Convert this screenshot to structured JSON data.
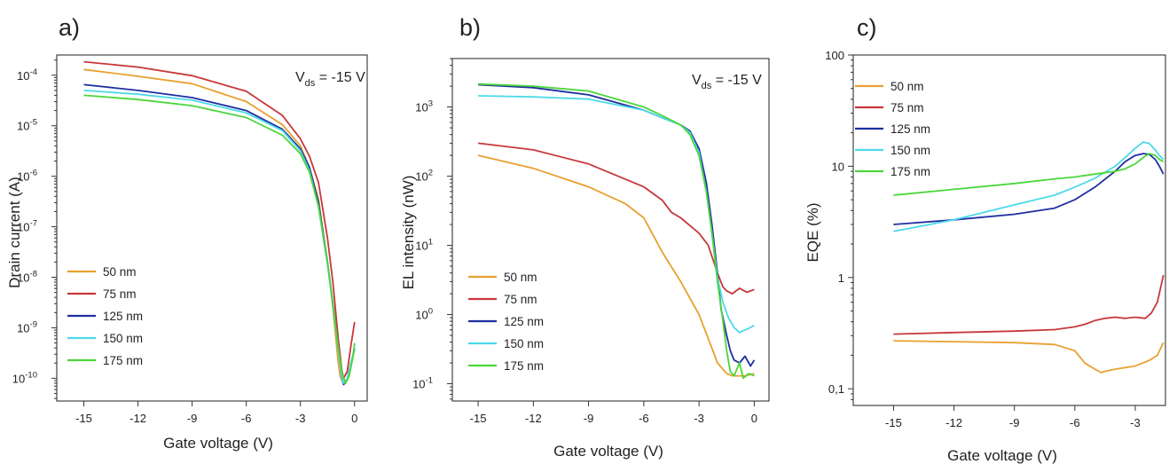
{
  "figure": {
    "annotation_prefix": "V",
    "annotation_subscript": "ds",
    "annotation_suffix": " = -15 V"
  },
  "chart_data": [
    {
      "panel": "a)",
      "type": "line",
      "xlabel": "Gate voltage (V)",
      "ylabel": "Drain current (A)",
      "xlim": [
        -16.5,
        0.7
      ],
      "xticks": [
        -15,
        -12,
        -9,
        -6,
        -3,
        0
      ],
      "yscale": "log",
      "ylim_exp": [
        -10.45,
        -3.6
      ],
      "yticks_exp": [
        -10,
        -9,
        -8,
        -7,
        -6,
        -5,
        -4
      ],
      "has_annotation": true,
      "legend_position": "bottom-left",
      "series": [
        {
          "name": "50 nm",
          "color": "#E8A030",
          "x": [
            -15,
            -12,
            -9,
            -6,
            -4,
            -3,
            -2.5,
            -2,
            -1.5,
            -1.2,
            -0.9,
            -0.8,
            -0.7,
            -0.55,
            -0.45,
            -0.4
          ],
          "y": [
            0.00013,
            9.5e-05,
            6.8e-05,
            3e-05,
            1.05e-05,
            4e-06,
            1.5e-06,
            3.5e-07,
            2e-08,
            2.5e-09,
            2e-10,
            1.1e-10,
            9e-11,
            1.1e-10,
            1.25e-10,
            1.35e-10
          ]
        },
        {
          "name": "75 nm",
          "color": "#C8373A",
          "x": [
            -15,
            -12,
            -9,
            -6,
            -4,
            -3,
            -2.5,
            -2,
            -1.5,
            -1.2,
            -0.9,
            -0.7,
            -0.6,
            -0.4,
            -0.2,
            0
          ],
          "y": [
            0.000185,
            0.000145,
            9.8e-05,
            4.8e-05,
            1.6e-05,
            5.5e-06,
            2.5e-06,
            7.5e-07,
            6e-08,
            8e-09,
            6e-10,
            1.4e-10,
            1e-10,
            1.4e-10,
            4.5e-10,
            1.3e-09
          ]
        },
        {
          "name": "125 nm",
          "color": "#1E2FA0",
          "x": [
            -15,
            -12,
            -9,
            -6,
            -4,
            -3,
            -2.5,
            -2,
            -1.5,
            -1.2,
            -0.9,
            -0.7,
            -0.6,
            -0.4,
            -0.2,
            0
          ],
          "y": [
            6.5e-05,
            5e-05,
            3.6e-05,
            2e-05,
            8.5e-06,
            3.5e-06,
            1.5e-06,
            3e-07,
            2e-08,
            3e-09,
            4e-10,
            1e-10,
            7.5e-11,
            1e-10,
            2e-10,
            3.8e-10
          ]
        },
        {
          "name": "150 nm",
          "color": "#4DD9E8",
          "x": [
            -15,
            -12,
            -9,
            -6,
            -4,
            -3,
            -2.5,
            -2,
            -1.5,
            -1.2,
            -0.9,
            -0.7,
            -0.6,
            -0.4,
            -0.2,
            0
          ],
          "y": [
            5e-05,
            4.2e-05,
            3.2e-05,
            1.8e-05,
            8e-06,
            3.2e-06,
            1.3e-06,
            2.5e-07,
            1.8e-08,
            2.8e-09,
            3.5e-10,
            1e-10,
            8e-11,
            1e-10,
            2e-10,
            4e-10
          ]
        },
        {
          "name": "175 nm",
          "color": "#4BD63A",
          "x": [
            -15,
            -12,
            -9,
            -6,
            -4,
            -3,
            -2.5,
            -2,
            -1.5,
            -1.2,
            -0.9,
            -0.7,
            -0.5,
            -0.3,
            -0.1,
            0
          ],
          "y": [
            4e-05,
            3.3e-05,
            2.5e-05,
            1.45e-05,
            6.5e-06,
            2.8e-06,
            1.2e-06,
            2.5e-07,
            2e-08,
            3e-09,
            4e-10,
            1.3e-10,
            8e-11,
            1.1e-10,
            2.5e-10,
            5e-10
          ]
        }
      ]
    },
    {
      "panel": "b)",
      "type": "line",
      "xlabel": "Gate voltage (V)",
      "ylabel": "EL intensity (nW)",
      "xlim": [
        -16.4,
        0.8
      ],
      "xticks": [
        -15,
        -12,
        -9,
        -6,
        -3,
        0
      ],
      "yscale": "log",
      "ylim_exp": [
        -1.25,
        3.7
      ],
      "yticks_exp": [
        -1,
        0,
        1,
        2,
        3
      ],
      "has_annotation": true,
      "legend_position": "bottom-left",
      "series": [
        {
          "name": "50 nm",
          "color": "#E8A030",
          "x": [
            -15,
            -12,
            -9,
            -7,
            -6,
            -5,
            -4,
            -3,
            -2.5,
            -2,
            -1.5,
            -1.2,
            -1.0,
            -0.5,
            0
          ],
          "y": [
            200,
            130,
            70,
            40,
            25,
            8,
            3,
            1.0,
            0.45,
            0.2,
            0.14,
            0.13,
            0.13,
            0.13,
            0.14
          ]
        },
        {
          "name": "75 nm",
          "color": "#C8373A",
          "x": [
            -15,
            -12,
            -9,
            -6,
            -5,
            -4.5,
            -4,
            -3,
            -2.5,
            -2,
            -1.7,
            -1.5,
            -1.2,
            -0.8,
            -0.4,
            0
          ],
          "y": [
            300,
            240,
            150,
            70,
            45,
            30,
            25,
            15,
            10,
            4,
            2.5,
            2.2,
            2.0,
            2.4,
            2.1,
            2.3
          ]
        },
        {
          "name": "125 nm",
          "color": "#1E2FA0",
          "x": [
            -15,
            -12,
            -9,
            -6,
            -5,
            -4,
            -3.5,
            -3,
            -2.6,
            -2.3,
            -2.0,
            -1.8,
            -1.5,
            -1.3,
            -1.1,
            -0.8,
            -0.5,
            -0.2,
            0
          ],
          "y": [
            2100,
            1900,
            1500,
            900,
            700,
            550,
            450,
            250,
            80,
            20,
            4,
            1.2,
            0.5,
            0.3,
            0.22,
            0.2,
            0.25,
            0.18,
            0.22
          ]
        },
        {
          "name": "150 nm",
          "color": "#4DD9E8",
          "x": [
            -15,
            -12,
            -9,
            -6,
            -5,
            -4,
            -3.5,
            -3,
            -2.6,
            -2.3,
            -2.0,
            -1.7,
            -1.4,
            -1.1,
            -0.8,
            -0.5,
            -0.2,
            0
          ],
          "y": [
            1450,
            1400,
            1300,
            900,
            700,
            550,
            430,
            220,
            60,
            15,
            3.5,
            1.5,
            0.9,
            0.65,
            0.55,
            0.6,
            0.65,
            0.7
          ]
        },
        {
          "name": "175 nm",
          "color": "#4BD63A",
          "x": [
            -15,
            -12,
            -9,
            -6,
            -5,
            -4,
            -3.5,
            -3,
            -2.6,
            -2.3,
            -2.0,
            -1.7,
            -1.5,
            -1.3,
            -1.1,
            -0.8,
            -0.6,
            -0.3,
            0
          ],
          "y": [
            2150,
            2000,
            1700,
            1000,
            750,
            550,
            400,
            200,
            60,
            15,
            3,
            0.8,
            0.3,
            0.15,
            0.13,
            0.2,
            0.12,
            0.14,
            0.13
          ]
        }
      ]
    },
    {
      "panel": "c)",
      "type": "line",
      "xlabel": "Gate voltage (V)",
      "ylabel": "EQE (%)",
      "xlim": [
        -17,
        -1.5
      ],
      "xticks": [
        -15,
        -12,
        -9,
        -6,
        -3
      ],
      "xtick_labels": [
        "-15",
        "-12",
        "-9",
        "-6",
        "-3"
      ],
      "yscale": "log",
      "ylim_exp": [
        -1.15,
        2
      ],
      "yticks_exp": [
        -1,
        0,
        1,
        2
      ],
      "ytick_labels": [
        "0,1",
        "1",
        "10",
        "100"
      ],
      "has_annotation": false,
      "legend_position": "top-left",
      "series": [
        {
          "name": "50 nm",
          "color": "#E8A030",
          "x": [
            -15,
            -12,
            -9,
            -7,
            -6,
            -5.5,
            -5,
            -4.7,
            -4.4,
            -4,
            -3,
            -2.3,
            -1.9,
            -1.6
          ],
          "y": [
            0.27,
            0.265,
            0.26,
            0.25,
            0.22,
            0.17,
            0.15,
            0.14,
            0.145,
            0.15,
            0.16,
            0.18,
            0.2,
            0.26
          ]
        },
        {
          "name": "75 nm",
          "color": "#C8373A",
          "x": [
            -15,
            -12,
            -9,
            -7,
            -6,
            -5.5,
            -5,
            -4.5,
            -4,
            -3.5,
            -3,
            -2.5,
            -2.2,
            -1.9,
            -1.6
          ],
          "y": [
            0.31,
            0.32,
            0.33,
            0.34,
            0.36,
            0.38,
            0.41,
            0.43,
            0.44,
            0.43,
            0.44,
            0.43,
            0.48,
            0.6,
            1.05
          ]
        },
        {
          "name": "125 nm",
          "color": "#1E2FA0",
          "x": [
            -15,
            -12,
            -9,
            -7,
            -6,
            -5,
            -4,
            -3.5,
            -3,
            -2.6,
            -2.3,
            -2.0,
            -1.8,
            -1.6
          ],
          "y": [
            3.0,
            3.3,
            3.7,
            4.2,
            5.0,
            6.5,
            9.0,
            11.0,
            12.5,
            13.0,
            12.8,
            11.5,
            10.0,
            8.5
          ]
        },
        {
          "name": "150 nm",
          "color": "#4DD9E8",
          "x": [
            -15,
            -12,
            -9,
            -7,
            -6,
            -5,
            -4,
            -3.5,
            -3,
            -2.6,
            -2.3,
            -2.0,
            -1.8,
            -1.6
          ],
          "y": [
            2.6,
            3.3,
            4.5,
            5.5,
            6.5,
            7.8,
            10.0,
            12.0,
            14.5,
            16.5,
            16.0,
            14.0,
            12.5,
            11.5
          ]
        },
        {
          "name": "175 nm",
          "color": "#4BD63A",
          "x": [
            -15,
            -12,
            -9,
            -7,
            -6,
            -5,
            -4,
            -3.5,
            -3,
            -2.6,
            -2.3,
            -2.0,
            -1.8,
            -1.6
          ],
          "y": [
            5.5,
            6.2,
            7.0,
            7.7,
            8.0,
            8.5,
            9.0,
            9.5,
            10.5,
            12.0,
            13.0,
            12.5,
            11.5,
            11.0
          ]
        }
      ]
    }
  ]
}
